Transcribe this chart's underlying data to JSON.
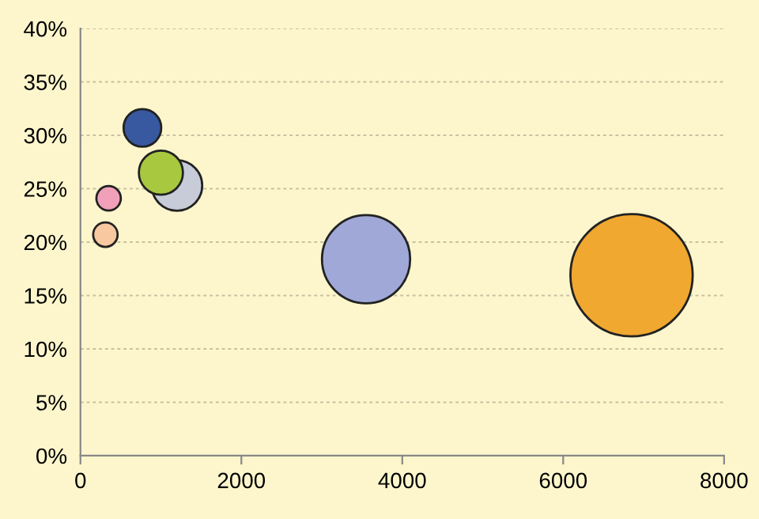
{
  "chart_data": {
    "type": "bubble",
    "x": [
      6850,
      3550,
      1200,
      1000,
      770,
      350,
      310
    ],
    "values": [
      16.9,
      18.4,
      25.3,
      26.5,
      30.7,
      24.1,
      20.7
    ],
    "sizes": [
      1,
      0.52,
      0.17,
      0.13,
      0.095,
      0.04,
      0.04
    ],
    "colors": [
      "#f0a830",
      "#a0a8d8",
      "#c8ccd8",
      "#a8c840",
      "#3858a0",
      "#f0a0b8",
      "#f8c8a0"
    ],
    "xlim": [
      0,
      8000
    ],
    "xticks": [
      0,
      2000,
      4000,
      6000,
      8000
    ],
    "ylim": [
      0,
      40
    ],
    "yticks": [
      {
        "value": 0,
        "label": "0%"
      },
      {
        "value": 5,
        "label": "5%"
      },
      {
        "value": 10,
        "label": "10%"
      },
      {
        "value": 15,
        "label": "15%"
      },
      {
        "value": 20,
        "label": "20%"
      },
      {
        "value": 25,
        "label": "25%"
      },
      {
        "value": 30,
        "label": "30%"
      },
      {
        "value": 35,
        "label": "35%"
      },
      {
        "value": 40,
        "label": "40%"
      }
    ],
    "grid": "y"
  }
}
